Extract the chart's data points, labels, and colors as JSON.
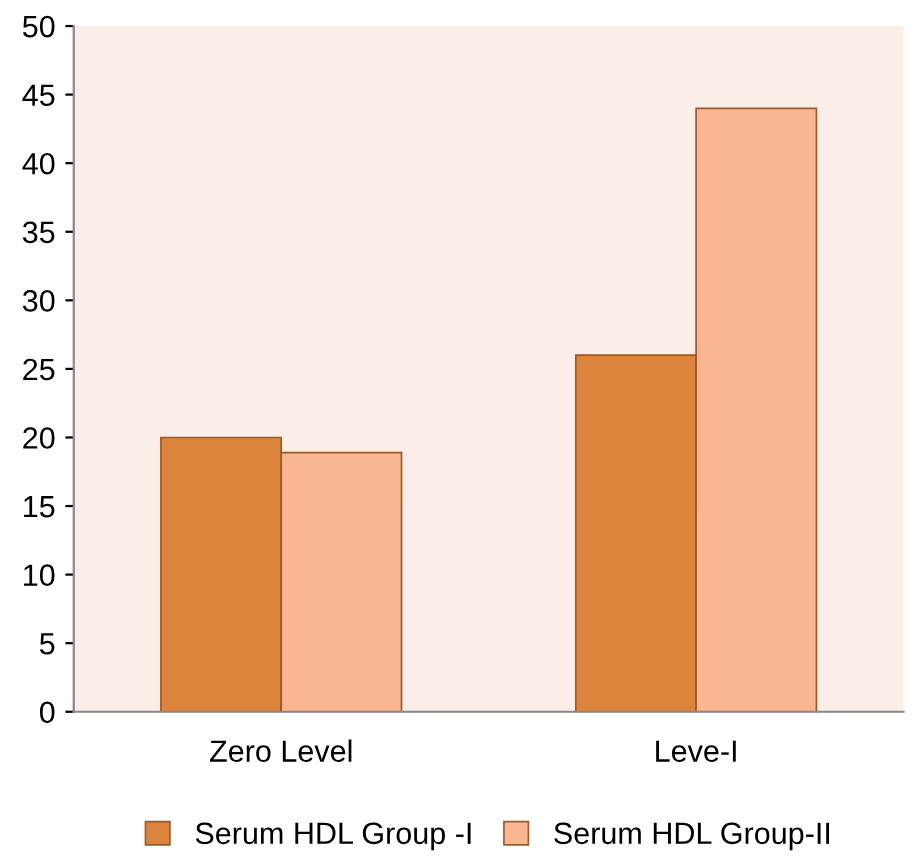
{
  "chart_data": {
    "type": "bar",
    "categories": [
      "Zero Level",
      "Leve-I"
    ],
    "series": [
      {
        "name": "Serum HDL Group -I",
        "color": "#dd843c",
        "values": [
          20,
          26
        ]
      },
      {
        "name": "Serum HDL Group-II",
        "color": "#f9b690",
        "values": [
          18.9,
          44
        ]
      }
    ],
    "ylim": [
      0,
      50
    ],
    "yticks": [
      0,
      5,
      10,
      15,
      20,
      25,
      30,
      35,
      40,
      45,
      50
    ],
    "grid": false,
    "legend": "bottom"
  }
}
